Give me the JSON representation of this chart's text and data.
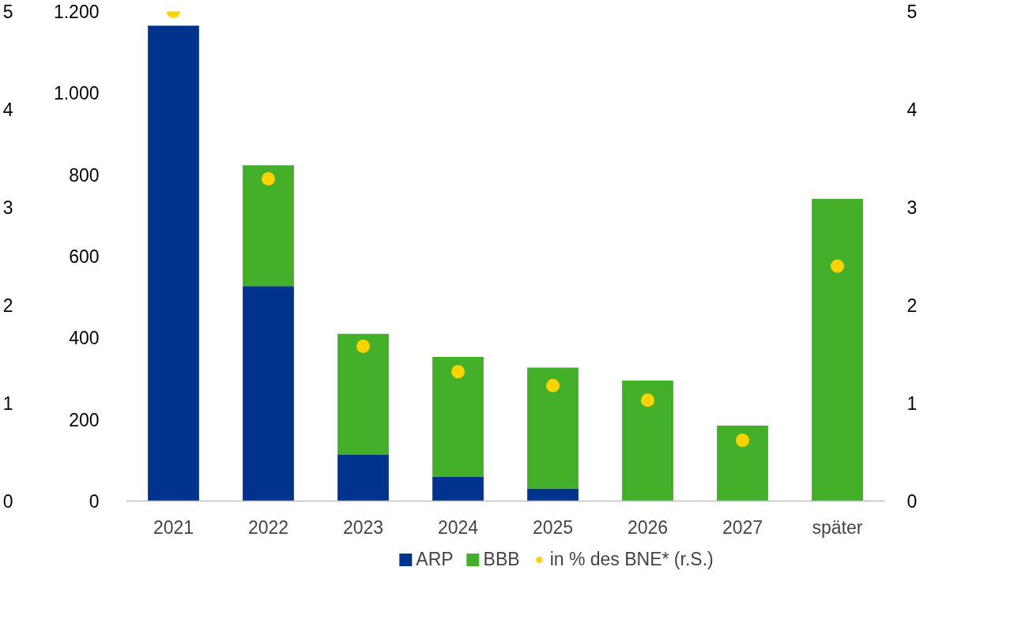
{
  "chart_data": {
    "type": "bar",
    "stacked": true,
    "categories": [
      "2021",
      "2022",
      "2023",
      "2024",
      "2025",
      "2026",
      "2027",
      "später"
    ],
    "series": [
      {
        "name": "ARP",
        "color": "#00338d",
        "values": [
          1165,
          527,
          113,
          59,
          31,
          0,
          0,
          0
        ]
      },
      {
        "name": "BBB",
        "color": "#44b02a",
        "values": [
          0,
          296,
          297,
          294,
          296,
          295,
          185,
          741
        ]
      },
      {
        "name": "in % des BNE* (r.S.)",
        "type": "scatter",
        "axis": "y2",
        "marker": "circle",
        "color": "#ffd200",
        "values": [
          5.0,
          3.29,
          1.58,
          1.32,
          1.18,
          1.03,
          0.62,
          2.4
        ]
      }
    ],
    "ylim": [
      0,
      1200
    ],
    "yticks": [
      0,
      200,
      400,
      600,
      800,
      {
        "value": 1000,
        "label": "1.000"
      },
      {
        "value": 1200,
        "label": "1.200"
      }
    ],
    "y2lim": [
      0,
      5
    ],
    "y2ticks": [
      0,
      1,
      2,
      3,
      4,
      5
    ],
    "y3lim": [
      0,
      5
    ],
    "y3ticks": [
      0,
      1,
      2,
      3,
      4,
      5
    ],
    "grid": false,
    "legend": "bottom"
  }
}
